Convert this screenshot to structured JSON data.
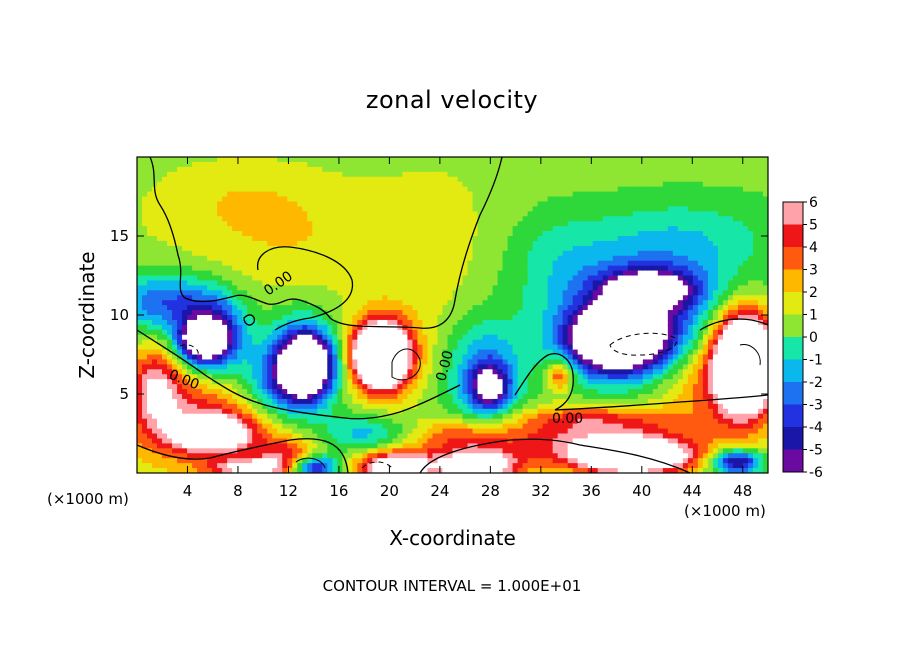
{
  "chart_data": {
    "type": "heatmap",
    "title": "zonal velocity",
    "xlabel": "X-coordinate",
    "ylabel": "Z-coordinate",
    "x_unit_label": "(×1000 m)",
    "x_ticks": [
      4,
      8,
      12,
      16,
      20,
      24,
      28,
      32,
      36,
      40,
      44,
      48
    ],
    "y_ticks": [
      5,
      10,
      15
    ],
    "xlim": [
      0,
      50
    ],
    "ylim": [
      0,
      20
    ],
    "colorbar_ticks": [
      6,
      5,
      4,
      3,
      2,
      1,
      0,
      -1,
      -2,
      -3,
      -4,
      -5,
      -6
    ],
    "colorbar_range": [
      -6,
      6
    ],
    "contour_label": "0.00",
    "contour_interval_note": "CONTOUR INTERVAL = 1.000E+01",
    "colors": {
      "-6": "#6a0aa0",
      "-5": "#1a16a8",
      "-4": "#2232e0",
      "-3": "#1c72f0",
      "-2": "#0ab8ee",
      "-1": "#16e6a8",
      "0": "#2ed83a",
      "1": "#8ee632",
      "2": "#e2ea12",
      "3": "#ffb800",
      "4": "#ff5a10",
      "5": "#ee1616",
      "6": "#ffa2aa"
    },
    "features": [
      {
        "x": 12.0,
        "z": 14.8,
        "rx": 9.0,
        "rz": 3.4,
        "v": 1.3
      },
      {
        "x": 8.5,
        "z": 17.5,
        "rx": 6.0,
        "rz": 2.2,
        "v": 0.9
      },
      {
        "x": 24.0,
        "z": 13.0,
        "rx": 5.5,
        "rz": 7.0,
        "v": 0.9
      },
      {
        "x": 41.0,
        "z": 11.5,
        "rx": 9.0,
        "rz": 4.0,
        "v": -4.0
      },
      {
        "x": 40.5,
        "z": 11.6,
        "rx": 3.4,
        "rz": 1.2,
        "v": -7.5
      },
      {
        "x": 44.0,
        "z": 15.5,
        "rx": 7.0,
        "rz": 2.2,
        "v": -1.0
      },
      {
        "x": 33.0,
        "z": 14.0,
        "rx": 4.0,
        "rz": 3.0,
        "v": -1.0
      },
      {
        "x": 2.0,
        "z": 10.8,
        "rx": 4.0,
        "rz": 2.0,
        "v": -4.5
      },
      {
        "x": 6.0,
        "z": 8.8,
        "rx": 2.6,
        "rz": 2.4,
        "v": -6.5
      },
      {
        "x": 5.2,
        "z": 8.3,
        "rx": 1.8,
        "rz": 1.2,
        "v": -8.0
      },
      {
        "x": 13.0,
        "z": 6.8,
        "rx": 2.8,
        "rz": 2.8,
        "v": -7.0
      },
      {
        "x": 13.5,
        "z": 6.8,
        "rx": 1.8,
        "rz": 1.8,
        "v": -9.0
      },
      {
        "x": 10.5,
        "z": 5.4,
        "rx": 3.2,
        "rz": 2.2,
        "v": -3.0
      },
      {
        "x": 19.5,
        "z": 7.5,
        "rx": 2.6,
        "rz": 2.4,
        "v": 7.0
      },
      {
        "x": 19.2,
        "z": 7.4,
        "rx": 1.8,
        "rz": 1.7,
        "v": 9.5
      },
      {
        "x": 27.5,
        "z": 6.0,
        "rx": 3.0,
        "rz": 3.5,
        "v": -4.5
      },
      {
        "x": 28.0,
        "z": 5.5,
        "rx": 1.4,
        "rz": 1.3,
        "v": -6.0
      },
      {
        "x": 33.5,
        "z": 6.2,
        "rx": 1.1,
        "rz": 1.0,
        "v": 4.5
      },
      {
        "x": 38.5,
        "z": 8.3,
        "rx": 4.8,
        "rz": 2.5,
        "v": -7.5
      },
      {
        "x": 38.0,
        "z": 8.6,
        "rx": 3.0,
        "rz": 1.6,
        "v": -9.5
      },
      {
        "x": 48.0,
        "z": 7.0,
        "rx": 3.0,
        "rz": 4.0,
        "v": 7.5
      },
      {
        "x": 48.2,
        "z": 7.0,
        "rx": 2.0,
        "rz": 2.6,
        "v": 9.0
      },
      {
        "x": 43.5,
        "z": 6.0,
        "rx": 3.5,
        "rz": 3.0,
        "v": 2.2
      },
      {
        "x": 5.5,
        "z": 3.2,
        "rx": 6.0,
        "rz": 3.0,
        "v": 4.5
      },
      {
        "x": 6.0,
        "z": 2.5,
        "rx": 2.8,
        "rz": 1.0,
        "v": 7.0
      },
      {
        "x": 1.5,
        "z": 5.5,
        "rx": 2.0,
        "rz": 2.6,
        "v": 4.5
      },
      {
        "x": 12.0,
        "z": 1.0,
        "rx": 2.5,
        "rz": 1.2,
        "v": 4.0
      },
      {
        "x": 14.0,
        "z": 0.4,
        "rx": 2.0,
        "rz": 0.8,
        "v": -7.0
      },
      {
        "x": 20.5,
        "z": 0.4,
        "rx": 3.0,
        "rz": 1.0,
        "v": 8.0
      },
      {
        "x": 27.0,
        "z": 0.4,
        "rx": 3.2,
        "rz": 1.0,
        "v": 8.0
      },
      {
        "x": 26.0,
        "z": 2.2,
        "rx": 4.0,
        "rz": 1.2,
        "v": 3.5
      },
      {
        "x": 36.0,
        "z": 2.0,
        "rx": 8.0,
        "rz": 1.6,
        "v": 4.5
      },
      {
        "x": 39.5,
        "z": 1.0,
        "rx": 4.5,
        "rz": 1.1,
        "v": 9.0
      },
      {
        "x": 36.0,
        "z": 3.5,
        "rx": 6.0,
        "rz": 0.8,
        "v": 2.5
      },
      {
        "x": 47.5,
        "z": 0.7,
        "rx": 2.0,
        "rz": 0.8,
        "v": -7.5
      },
      {
        "x": 18.0,
        "z": 2.5,
        "rx": 3.5,
        "rz": 1.2,
        "v": -3.0
      },
      {
        "x": 9.0,
        "z": 0.3,
        "rx": 3.0,
        "rz": 0.6,
        "v": 5.0
      }
    ]
  }
}
